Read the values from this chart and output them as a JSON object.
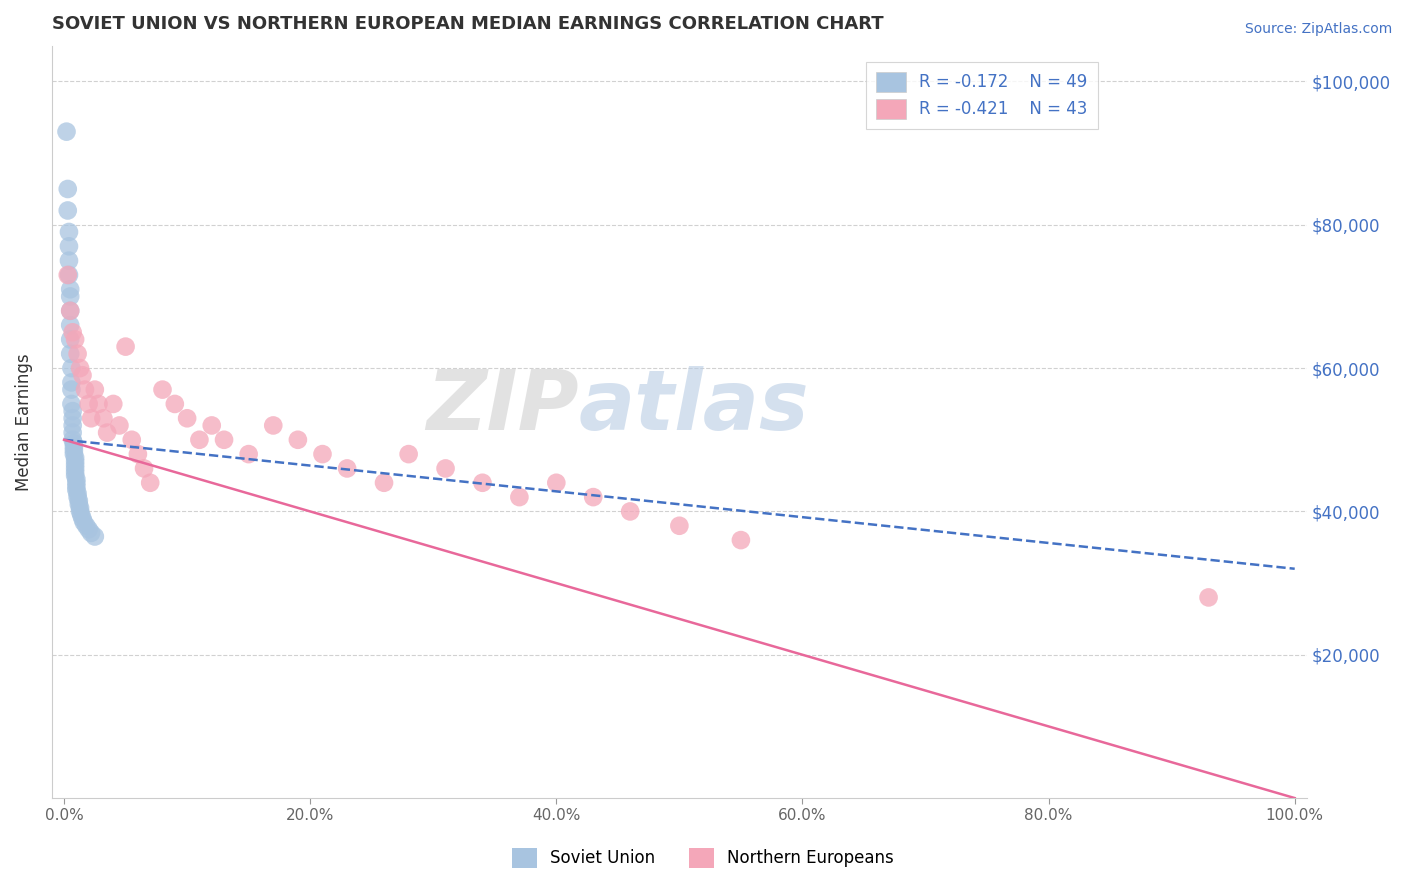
{
  "title": "SOVIET UNION VS NORTHERN EUROPEAN MEDIAN EARNINGS CORRELATION CHART",
  "source": "Source: ZipAtlas.com",
  "ylabel": "Median Earnings",
  "watermark_left": "ZIP",
  "watermark_right": "atlas",
  "xlim": [
    -0.01,
    1.01
  ],
  "ylim": [
    0,
    105000
  ],
  "yticks": [
    20000,
    40000,
    60000,
    80000,
    100000
  ],
  "ytick_labels": [
    "$20,000",
    "$40,000",
    "$60,000",
    "$80,000",
    "$100,000"
  ],
  "xticks": [
    0.0,
    0.2,
    0.4,
    0.6,
    0.8,
    1.0
  ],
  "xtick_labels": [
    "0.0%",
    "20.0%",
    "40.0%",
    "60.0%",
    "80.0%",
    "100.0%"
  ],
  "soviet_color": "#a8c4e0",
  "northern_color": "#f4a7b9",
  "soviet_R": -0.172,
  "soviet_N": 49,
  "northern_R": -0.421,
  "northern_N": 43,
  "legend_label_soviet": "Soviet Union",
  "legend_label_northern": "Northern Europeans",
  "soviet_x": [
    0.002,
    0.003,
    0.003,
    0.004,
    0.004,
    0.004,
    0.004,
    0.005,
    0.005,
    0.005,
    0.005,
    0.005,
    0.005,
    0.006,
    0.006,
    0.006,
    0.006,
    0.007,
    0.007,
    0.007,
    0.007,
    0.007,
    0.008,
    0.008,
    0.008,
    0.008,
    0.009,
    0.009,
    0.009,
    0.009,
    0.009,
    0.009,
    0.01,
    0.01,
    0.01,
    0.01,
    0.011,
    0.011,
    0.012,
    0.012,
    0.013,
    0.013,
    0.014,
    0.015,
    0.016,
    0.018,
    0.02,
    0.022,
    0.025
  ],
  "soviet_y": [
    93000,
    85000,
    82000,
    79000,
    77000,
    75000,
    73000,
    71000,
    70000,
    68000,
    66000,
    64000,
    62000,
    60000,
    58000,
    57000,
    55000,
    54000,
    53000,
    52000,
    51000,
    50000,
    49500,
    49000,
    48500,
    48000,
    47500,
    47000,
    46500,
    46000,
    45500,
    45000,
    44500,
    44000,
    43500,
    43000,
    42500,
    42000,
    41500,
    41000,
    40500,
    40000,
    39500,
    39000,
    38500,
    38000,
    37500,
    37000,
    36500
  ],
  "northern_x": [
    0.003,
    0.005,
    0.007,
    0.009,
    0.011,
    0.013,
    0.015,
    0.017,
    0.02,
    0.022,
    0.025,
    0.028,
    0.032,
    0.035,
    0.04,
    0.045,
    0.05,
    0.055,
    0.06,
    0.065,
    0.07,
    0.08,
    0.09,
    0.1,
    0.11,
    0.12,
    0.13,
    0.15,
    0.17,
    0.19,
    0.21,
    0.23,
    0.26,
    0.28,
    0.31,
    0.34,
    0.37,
    0.4,
    0.43,
    0.46,
    0.5,
    0.55,
    0.93
  ],
  "northern_y": [
    73000,
    68000,
    65000,
    64000,
    62000,
    60000,
    59000,
    57000,
    55000,
    53000,
    57000,
    55000,
    53000,
    51000,
    55000,
    52000,
    63000,
    50000,
    48000,
    46000,
    44000,
    57000,
    55000,
    53000,
    50000,
    52000,
    50000,
    48000,
    52000,
    50000,
    48000,
    46000,
    44000,
    48000,
    46000,
    44000,
    42000,
    44000,
    42000,
    40000,
    38000,
    36000,
    28000
  ],
  "background_color": "#ffffff",
  "grid_color": "#cccccc",
  "axis_label_color": "#333333",
  "title_color": "#333333",
  "source_color": "#4472c4",
  "ytick_color": "#4472c4",
  "xtick_color": "#666666",
  "legend_r_color": "#4472c4",
  "line_blue_color": "#4472c4",
  "line_pink_color": "#e8689a",
  "soviet_line_y0": 50000,
  "soviet_line_y1": 32000,
  "northern_line_y0": 50000,
  "northern_line_y1": 0
}
